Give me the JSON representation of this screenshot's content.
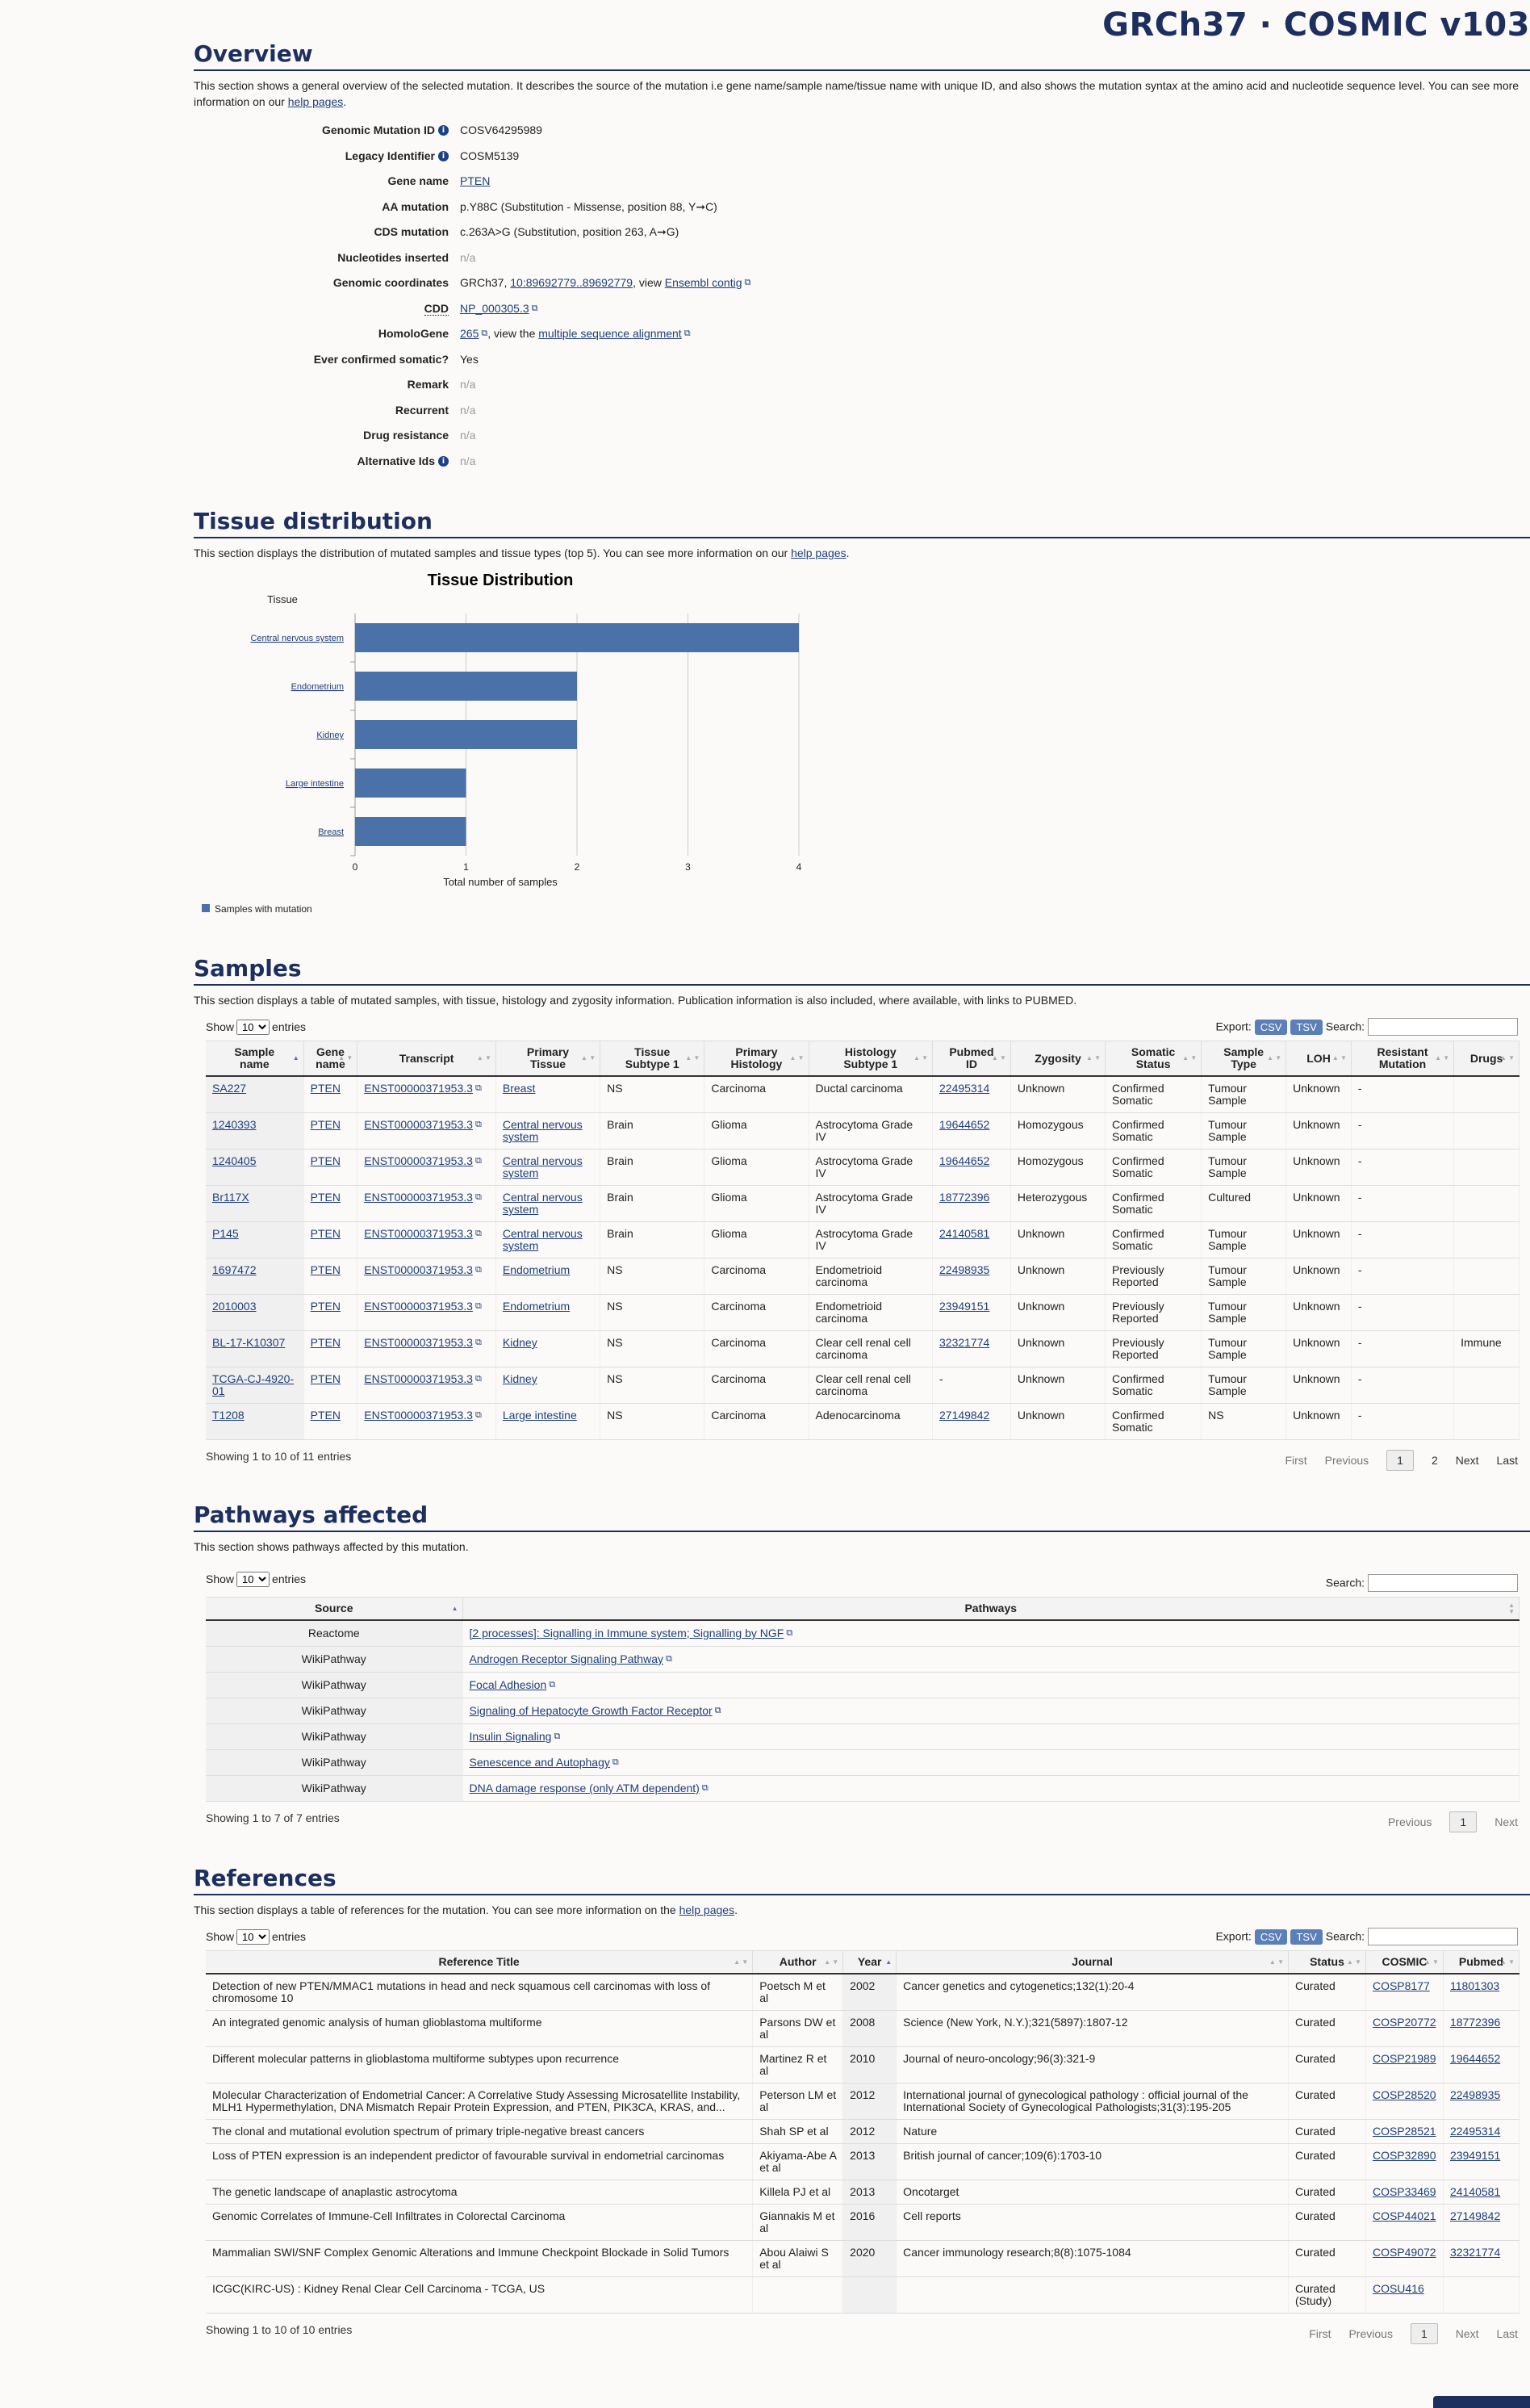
{
  "brand": "GRCh37 · COSMIC v103",
  "overview": {
    "title": "Overview",
    "desc_pre": "This section shows a general overview of the selected mutation. It describes the source of the mutation i.e gene name/sample name/tissue name with unique ID, and also shows the mutation syntax at the amino acid and nucleotide sequence level. You can see more information on our ",
    "desc_link": "help pages",
    "desc_post": ".",
    "fields": {
      "genomic_id_label": "Genomic Mutation ID",
      "genomic_id": "COSV64295989",
      "legacy_label": "Legacy Identifier",
      "legacy": "COSM5139",
      "gene_label": "Gene name",
      "gene": "PTEN",
      "aa_label": "AA mutation",
      "aa": "p.Y88C (Substitution - Missense, position 88, Y➞C)",
      "cds_label": "CDS mutation",
      "cds": "c.263A>G (Substitution, position 263, A➞G)",
      "nuc_label": "Nucleotides inserted",
      "nuc": "n/a",
      "coord_label": "Genomic coordinates",
      "coord_pre": "GRCh37,",
      "coord_link": "10:89692779..89692779",
      "coord_mid": ", view",
      "coord_link2": "Ensembl contig",
      "cdd_label": "CDD",
      "cdd": "NP_000305.3",
      "homolo_label": "HomoloGene",
      "homolo": "265",
      "homolo_mid": ", view the",
      "homolo_link": "multiple sequence alignment",
      "somatic_label": "Ever confirmed somatic?",
      "somatic": "Yes",
      "remark_label": "Remark",
      "remark": "n/a",
      "recurrent_label": "Recurrent",
      "recurrent": "n/a",
      "drug_label": "Drug resistance",
      "drug": "n/a",
      "alt_label": "Alternative Ids",
      "alt": "n/a"
    }
  },
  "tissue": {
    "title": "Tissue distribution",
    "desc_pre": "This section displays the distribution of mutated samples and tissue types (top 5). You can see more information on our ",
    "desc_link": "help pages",
    "desc_post": "."
  },
  "chart_data": {
    "type": "bar",
    "orientation": "horizontal",
    "title": "Tissue Distribution",
    "ylabel": "Tissue",
    "xlabel": "Total number of samples",
    "categories": [
      "Central nervous system",
      "Endometrium",
      "Kidney",
      "Large intestine",
      "Breast"
    ],
    "series": [
      {
        "name": "Samples with mutation",
        "values": [
          4,
          2,
          2,
          1,
          1
        ],
        "color": "#4a72a8"
      }
    ],
    "xlim": [
      0,
      4
    ],
    "xticks": [
      0,
      1,
      2,
      3,
      4
    ],
    "grid": true,
    "legend": "bottom-left"
  },
  "samples": {
    "title": "Samples",
    "desc": "This section displays a table of mutated samples, with tissue, histology and zygosity information. Publication information is also included, where available, with links to PUBMED.",
    "show": "Show",
    "entries": "entries",
    "page_size": "10",
    "export": "Export:",
    "csv": "CSV",
    "tsv": "TSV",
    "search": "Search:",
    "headers": [
      [
        "Sample",
        "name"
      ],
      [
        "Gene",
        "name"
      ],
      [
        "Transcript"
      ],
      [
        "Primary",
        "Tissue"
      ],
      [
        "Tissue",
        "Subtype 1"
      ],
      [
        "Primary",
        "Histology"
      ],
      [
        "Histology",
        "Subtype 1"
      ],
      [
        "Pubmed",
        "ID"
      ],
      [
        "Zygosity"
      ],
      [
        "Somatic",
        "Status"
      ],
      [
        "Sample",
        "Type"
      ],
      [
        "LOH"
      ],
      [
        "Resistant",
        "Mutation"
      ],
      [
        "Drugs"
      ]
    ],
    "rows": [
      [
        "SA227",
        "PTEN",
        "ENST00000371953.3",
        "Breast",
        "NS",
        "Carcinoma",
        "Ductal carcinoma",
        "22495314",
        "Unknown",
        "Confirmed Somatic",
        "Tumour Sample",
        "Unknown",
        "-",
        ""
      ],
      [
        "1240393",
        "PTEN",
        "ENST00000371953.3",
        "Central nervous system",
        "Brain",
        "Glioma",
        "Astrocytoma Grade IV",
        "19644652",
        "Homozygous",
        "Confirmed Somatic",
        "Tumour Sample",
        "Unknown",
        "-",
        ""
      ],
      [
        "1240405",
        "PTEN",
        "ENST00000371953.3",
        "Central nervous system",
        "Brain",
        "Glioma",
        "Astrocytoma Grade IV",
        "19644652",
        "Homozygous",
        "Confirmed Somatic",
        "Tumour Sample",
        "Unknown",
        "-",
        ""
      ],
      [
        "Br117X",
        "PTEN",
        "ENST00000371953.3",
        "Central nervous system",
        "Brain",
        "Glioma",
        "Astrocytoma Grade IV",
        "18772396",
        "Heterozygous",
        "Confirmed Somatic",
        "Cultured",
        "Unknown",
        "-",
        ""
      ],
      [
        "P145",
        "PTEN",
        "ENST00000371953.3",
        "Central nervous system",
        "Brain",
        "Glioma",
        "Astrocytoma Grade IV",
        "24140581",
        "Unknown",
        "Confirmed Somatic",
        "Tumour Sample",
        "Unknown",
        "-",
        ""
      ],
      [
        "1697472",
        "PTEN",
        "ENST00000371953.3",
        "Endometrium",
        "NS",
        "Carcinoma",
        "Endometrioid carcinoma",
        "22498935",
        "Unknown",
        "Previously Reported",
        "Tumour Sample",
        "Unknown",
        "-",
        ""
      ],
      [
        "2010003",
        "PTEN",
        "ENST00000371953.3",
        "Endometrium",
        "NS",
        "Carcinoma",
        "Endometrioid carcinoma",
        "23949151",
        "Unknown",
        "Previously Reported",
        "Tumour Sample",
        "Unknown",
        "-",
        ""
      ],
      [
        "BL-17-K10307",
        "PTEN",
        "ENST00000371953.3",
        "Kidney",
        "NS",
        "Carcinoma",
        "Clear cell renal cell carcinoma",
        "32321774",
        "Unknown",
        "Previously Reported",
        "Tumour Sample",
        "Unknown",
        "-",
        "Immune"
      ],
      [
        "TCGA-CJ-4920-01",
        "PTEN",
        "ENST00000371953.3",
        "Kidney",
        "NS",
        "Carcinoma",
        "Clear cell renal cell carcinoma",
        "-",
        "Unknown",
        "Confirmed Somatic",
        "Tumour Sample",
        "Unknown",
        "-",
        ""
      ],
      [
        "T1208",
        "PTEN",
        "ENST00000371953.3",
        "Large intestine",
        "NS",
        "Carcinoma",
        "Adenocarcinoma",
        "27149842",
        "Unknown",
        "Confirmed Somatic",
        "NS",
        "Unknown",
        "-",
        ""
      ]
    ],
    "info": "Showing 1 to 10 of 11 entries",
    "pager": {
      "first": "First",
      "prev": "Previous",
      "cur": "1",
      "p2": "2",
      "next": "Next",
      "last": "Last"
    }
  },
  "pathways": {
    "title": "Pathways affected",
    "desc": "This section shows pathways affected by this mutation.",
    "show": "Show",
    "entries": "entries",
    "page_size": "10",
    "search": "Search:",
    "headers": [
      "Source",
      "Pathways"
    ],
    "rows": [
      [
        "Reactome",
        "[2 processes]: Signalling in Immune system; Signalling by NGF"
      ],
      [
        "WikiPathway",
        "Androgen Receptor Signaling Pathway"
      ],
      [
        "WikiPathway",
        "Focal Adhesion"
      ],
      [
        "WikiPathway",
        "Signaling of Hepatocyte Growth Factor Receptor"
      ],
      [
        "WikiPathway",
        "Insulin Signaling"
      ],
      [
        "WikiPathway",
        "Senescence and Autophagy"
      ],
      [
        "WikiPathway",
        "DNA damage response (only ATM dependent)"
      ]
    ],
    "info": "Showing 1 to 7 of 7 entries",
    "pager": {
      "prev": "Previous",
      "cur": "1",
      "next": "Next"
    }
  },
  "references": {
    "title": "References",
    "desc_pre": "This section displays a table of references for the mutation. You can see more information on the ",
    "desc_link": "help pages",
    "desc_post": ".",
    "show": "Show",
    "entries": "entries",
    "page_size": "10",
    "export": "Export:",
    "csv": "CSV",
    "tsv": "TSV",
    "search": "Search:",
    "headers": [
      "Reference Title",
      "Author",
      "Year",
      "Journal",
      "Status",
      "COSMIC",
      "Pubmed"
    ],
    "rows": [
      [
        "Detection of new PTEN/MMAC1 mutations in head and neck squamous cell carcinomas with loss of chromosome 10",
        "Poetsch M et al",
        "2002",
        "Cancer genetics and cytogenetics;132(1):20-4",
        "Curated",
        "COSP8177",
        "11801303"
      ],
      [
        "An integrated genomic analysis of human glioblastoma multiforme",
        "Parsons DW et al",
        "2008",
        "Science (New York, N.Y.);321(5897):1807-12",
        "Curated",
        "COSP20772",
        "18772396"
      ],
      [
        "Different molecular patterns in glioblastoma multiforme subtypes upon recurrence",
        "Martinez R et al",
        "2010",
        "Journal of neuro-oncology;96(3):321-9",
        "Curated",
        "COSP21989",
        "19644652"
      ],
      [
        "Molecular Characterization of Endometrial Cancer: A Correlative Study Assessing Microsatellite Instability, MLH1 Hypermethylation, DNA Mismatch Repair Protein Expression, and PTEN, PIK3CA, KRAS, and...",
        "Peterson LM et al",
        "2012",
        "International journal of gynecological pathology : official journal of the International Society of Gynecological Pathologists;31(3):195-205",
        "Curated",
        "COSP28520",
        "22498935"
      ],
      [
        "The clonal and mutational evolution spectrum of primary triple-negative breast cancers",
        "Shah SP et al",
        "2012",
        "Nature",
        "Curated",
        "COSP28521",
        "22495314"
      ],
      [
        "Loss of PTEN expression is an independent predictor of favourable survival in endometrial carcinomas",
        "Akiyama-Abe A et al",
        "2013",
        "British journal of cancer;109(6):1703-10",
        "Curated",
        "COSP32890",
        "23949151"
      ],
      [
        "The genetic landscape of anaplastic astrocytoma",
        "Killela PJ et al",
        "2013",
        "Oncotarget",
        "Curated",
        "COSP33469",
        "24140581"
      ],
      [
        "Genomic Correlates of Immune-Cell Infiltrates in Colorectal Carcinoma",
        "Giannakis M et al",
        "2016",
        "Cell reports",
        "Curated",
        "COSP44021",
        "27149842"
      ],
      [
        "Mammalian SWI/SNF Complex Genomic Alterations and Immune Checkpoint Blockade in Solid Tumors",
        "Abou Alaiwi S et al",
        "2020",
        "Cancer immunology research;8(8):1075-1084",
        "Curated",
        "COSP49072",
        "32321774"
      ],
      [
        "ICGC(KIRC-US) : Kidney Renal Clear Cell Carcinoma - TCGA, US",
        "",
        "",
        "",
        "Curated (Study)",
        "COSU416",
        ""
      ]
    ],
    "info": "Showing 1 to 10 of 10 entries",
    "pager": {
      "first": "First",
      "prev": "Previous",
      "cur": "1",
      "next": "Next",
      "last": "Last"
    }
  }
}
